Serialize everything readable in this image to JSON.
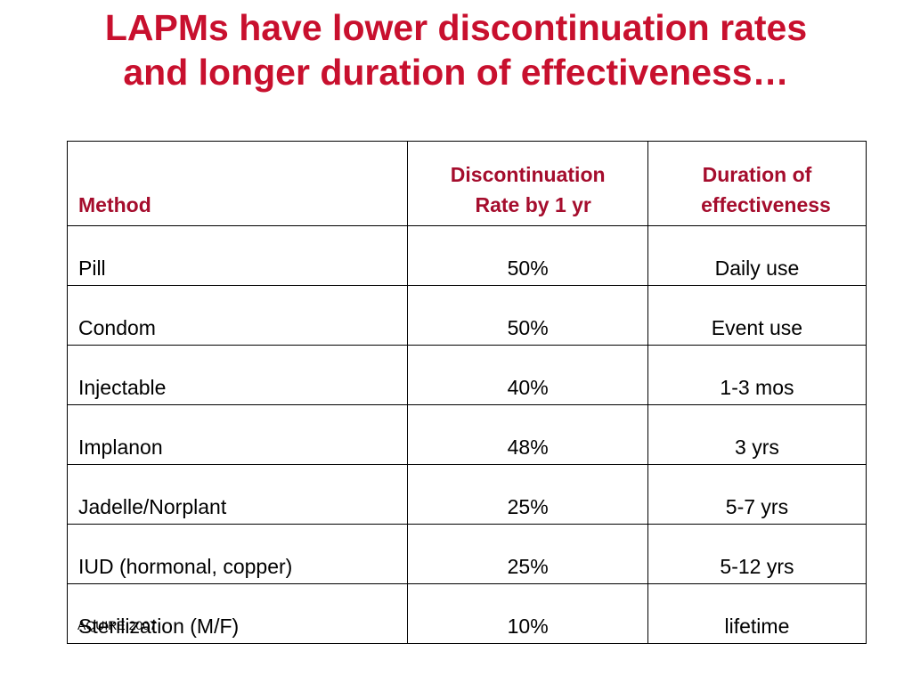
{
  "slide": {
    "title_line1": "LAPMs have lower discontinuation rates",
    "title_line2": "and longer duration of effectiveness…"
  },
  "table": {
    "headers": {
      "method": "Method",
      "rate_line1": "Discontinuation",
      "rate_line2": "Rate by 1 yr",
      "duration_line1": "Duration of",
      "duration_line2": "effectiveness"
    },
    "rows": [
      {
        "method": "Pill",
        "rate": "50%",
        "duration": "Daily use"
      },
      {
        "method": "Condom",
        "rate": "50%",
        "duration": "Event use"
      },
      {
        "method": "Injectable",
        "rate": "40%",
        "duration": "1-3 mos"
      },
      {
        "method": "Implanon",
        "rate": "48%",
        "duration": "3 yrs"
      },
      {
        "method": "Jadelle/Norplant",
        "rate": "25%",
        "duration": "5-7 yrs"
      },
      {
        "method": "IUD (hormonal, copper)",
        "rate": "25%",
        "duration": "5-12 yrs"
      },
      {
        "method": "Sterilization (M/F)",
        "rate": "10%",
        "duration": "lifetime"
      }
    ]
  },
  "source": "AQUIRE 2007",
  "colors": {
    "title": "#c8102e",
    "header_text": "#a50d2d",
    "body_text": "#000000",
    "background": "#ffffff"
  }
}
